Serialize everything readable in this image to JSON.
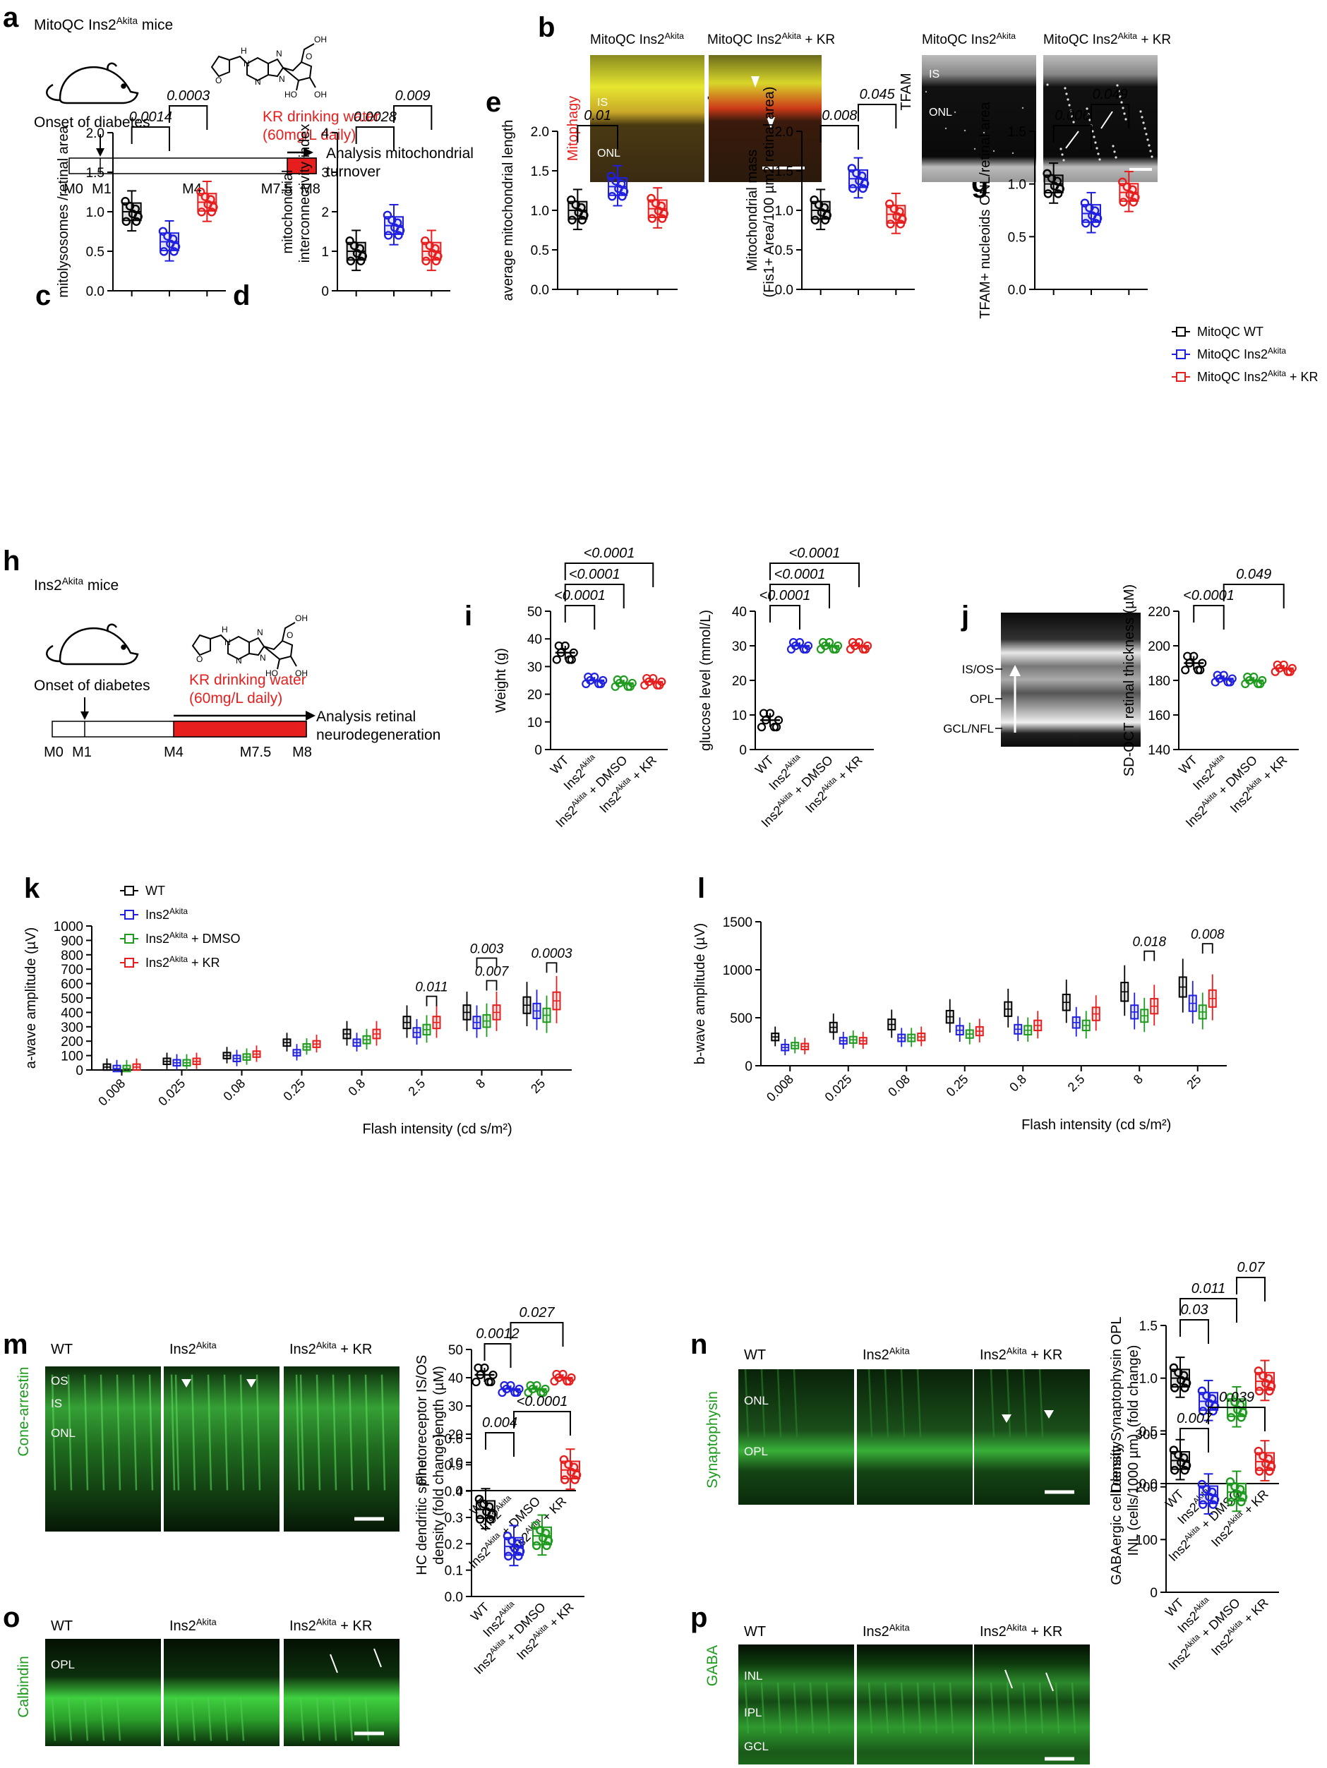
{
  "panels": {
    "a": {
      "letter": "a",
      "title_pre": "MitoQC Ins2",
      "title_sup": "Akita",
      "title_post": " mice",
      "onset": "Onset of diabetes",
      "kr_line1": "KR drinking water",
      "kr_line2": "(60mg/L daily)",
      "analysis_line1": "Analysis mitochondrial",
      "analysis_line2": "turnover",
      "timeline": [
        "M0",
        "M1",
        "M4",
        "M7.5",
        "M8"
      ]
    },
    "b": {
      "letter": "b",
      "img1_pre": "MitoQC Ins2",
      "img1_sup": "Akita",
      "img2_pre": "MitoQC Ins2",
      "img2_sup": "Akita",
      "img2_post": " + KR",
      "img3_pre": "MitoQC Ins2",
      "img3_sup": "Akita",
      "img4_pre": "MitoQC Ins2",
      "img4_sup": "Akita",
      "img4_post": " + KR",
      "side_left": "Mitophagy",
      "side_right": "TFAM",
      "label_is": "IS",
      "label_onl": "ONL",
      "label_is2": "IS",
      "label_onl2": "ONL"
    },
    "h": {
      "letter": "h",
      "title_pre": "Ins2",
      "title_sup": "Akita",
      "title_post": " mice",
      "onset": "Onset of diabetes",
      "kr_line1": "KR drinking water",
      "kr_line2": "(60mg/L daily)",
      "analysis_line1": "Analysis retinal",
      "analysis_line2": "neurodegeneration",
      "timeline": [
        "M0",
        "M1",
        "M4",
        "M7.5",
        "M8"
      ]
    },
    "j_image": {
      "labels": [
        "IS/OS",
        "OPL",
        "GCL/NFL"
      ]
    },
    "m": {
      "letter": "m",
      "stain": "Cone-arrestin",
      "cols": [
        "WT",
        "Ins2",
        "Ins2"
      ],
      "col_sup": "Akita",
      "col3_post": " + KR",
      "layers": [
        "OS",
        "IS",
        "ONL"
      ]
    },
    "n": {
      "letter": "n",
      "stain": "Synaptophysin",
      "cols": [
        "WT",
        "Ins2",
        "Ins2"
      ],
      "col_sup": "Akita",
      "col3_post": " + KR",
      "layers": [
        "ONL",
        "OPL"
      ]
    },
    "o": {
      "letter": "o",
      "stain": "Calbindin",
      "cols": [
        "WT",
        "Ins2",
        "Ins2"
      ],
      "col_sup": "Akita",
      "col3_post": " + KR",
      "layers": [
        "OPL"
      ]
    },
    "p": {
      "letter": "p",
      "stain": "GABA",
      "cols": [
        "WT",
        "Ins2",
        "Ins2"
      ],
      "col_sup": "Akita",
      "col3_post": " + KR",
      "layers": [
        "INL",
        "IPL",
        "GCL"
      ]
    }
  },
  "legend_g": {
    "items": [
      {
        "pre": "MitoQC WT",
        "sup": "",
        "post": "",
        "color": "#000000"
      },
      {
        "pre": "MitoQC Ins2",
        "sup": "Akita",
        "post": "",
        "color": "#1f1fe0"
      },
      {
        "pre": "MitoQC Ins2",
        "sup": "Akita",
        "post": " + KR",
        "color": "#e61e1e"
      }
    ]
  },
  "legend_k": {
    "items": [
      {
        "pre": "WT",
        "sup": "",
        "post": "",
        "color": "#000000"
      },
      {
        "pre": "Ins2",
        "sup": "Akita",
        "post": "",
        "color": "#1f1fe0"
      },
      {
        "pre": "Ins2",
        "sup": "Akita",
        "post": " + DMSO",
        "color": "#1e9a1e"
      },
      {
        "pre": "Ins2",
        "sup": "Akita",
        "post": " + KR",
        "color": "#e61e1e"
      }
    ]
  },
  "colors": {
    "wt": "#000000",
    "akita": "#1f1fe0",
    "dmso": "#1e9a1e",
    "kr": "#e61e1e"
  },
  "chart_data": [
    {
      "id": "c",
      "type": "box",
      "ylabel": "mitolysosomes /retinal area",
      "ylim": [
        0,
        2.0
      ],
      "yticks": [
        0.0,
        0.5,
        1.0,
        1.5,
        2.0
      ],
      "groups": [
        {
          "key": "wt",
          "median": 1.0
        },
        {
          "key": "akita",
          "median": 0.62
        },
        {
          "key": "kr",
          "median": 1.12
        }
      ],
      "pvalues": [
        {
          "a": 0,
          "b": 1,
          "text": "0.0014"
        },
        {
          "a": 1,
          "b": 2,
          "text": "0.0003"
        }
      ]
    },
    {
      "id": "d",
      "type": "box",
      "ylabel": "mitochondrial interconnectivity index",
      "ylim": [
        0,
        4
      ],
      "yticks": [
        0,
        1,
        2,
        3,
        4
      ],
      "groups": [
        {
          "key": "wt",
          "median": 1.0
        },
        {
          "key": "akita",
          "median": 1.65
        },
        {
          "key": "kr",
          "median": 1.0
        }
      ],
      "pvalues": [
        {
          "a": 0,
          "b": 1,
          "text": "0.0028"
        },
        {
          "a": 1,
          "b": 2,
          "text": "0.009"
        }
      ]
    },
    {
      "id": "e",
      "type": "box",
      "ylabel": "average mitochondrial length",
      "ylim": [
        0,
        2.0
      ],
      "yticks": [
        0.0,
        0.5,
        1.0,
        1.5,
        2.0
      ],
      "groups": [
        {
          "key": "wt",
          "median": 1.0
        },
        {
          "key": "akita",
          "median": 1.3
        },
        {
          "key": "kr",
          "median": 1.02
        }
      ],
      "pvalues": [
        {
          "a": 0,
          "b": 1,
          "text": "0.01"
        }
      ]
    },
    {
      "id": "f",
      "type": "box",
      "ylabel": "Mitochondrial mass (Fis1+ Area/100 µm2 retinal area)",
      "ylim": [
        0,
        2.0
      ],
      "yticks": [
        0.0,
        0.5,
        1.0,
        1.5,
        2.0
      ],
      "groups": [
        {
          "key": "wt",
          "median": 1.0
        },
        {
          "key": "akita",
          "median": 1.4
        },
        {
          "key": "kr",
          "median": 0.95
        }
      ],
      "pvalues": [
        {
          "a": 0,
          "b": 1,
          "text": "0.008"
        },
        {
          "a": 1,
          "b": 2,
          "text": "0.045"
        }
      ]
    },
    {
      "id": "g",
      "type": "box",
      "ylabel": "TFAM+ nucleoids ONL/retinal area",
      "ylim": [
        0,
        1.5
      ],
      "yticks": [
        0.0,
        0.5,
        1.0,
        1.5
      ],
      "groups": [
        {
          "key": "wt",
          "median": 1.0
        },
        {
          "key": "akita",
          "median": 0.72
        },
        {
          "key": "kr",
          "median": 0.92
        }
      ],
      "pvalues": [
        {
          "a": 0,
          "b": 1,
          "text": "0.006"
        },
        {
          "a": 1,
          "b": 2,
          "text": "0.049"
        }
      ]
    },
    {
      "id": "i1",
      "type": "scatter",
      "ylabel": "Weight (g)",
      "ylim": [
        0,
        50
      ],
      "yticks": [
        0,
        10,
        20,
        30,
        40,
        50
      ],
      "groups": [
        {
          "key": "wt",
          "mean": 35
        },
        {
          "key": "akita",
          "mean": 25
        },
        {
          "key": "dmso",
          "mean": 24
        },
        {
          "key": "kr",
          "mean": 24.5
        }
      ],
      "pvalues": [
        {
          "a": 0,
          "b": 1,
          "text": "<0.0001"
        },
        {
          "a": 0,
          "b": 2,
          "text": "<0.0001"
        },
        {
          "a": 0,
          "b": 3,
          "text": "<0.0001"
        }
      ]
    },
    {
      "id": "i2",
      "type": "scatter",
      "ylabel": "glucose level (mmol/L)",
      "ylim": [
        0,
        40
      ],
      "yticks": [
        0,
        10,
        20,
        30,
        40
      ],
      "groups": [
        {
          "key": "wt",
          "mean": 8.5
        },
        {
          "key": "akita",
          "mean": 30
        },
        {
          "key": "dmso",
          "mean": 30
        },
        {
          "key": "kr",
          "mean": 30
        }
      ],
      "pvalues": [
        {
          "a": 0,
          "b": 1,
          "text": "<0.0001"
        },
        {
          "a": 0,
          "b": 2,
          "text": "<0.0001"
        },
        {
          "a": 0,
          "b": 3,
          "text": "<0.0001"
        }
      ]
    },
    {
      "id": "j",
      "type": "scatter",
      "ylabel": "SD-OCT retinal thickness (µM)",
      "ylim": [
        140,
        220
      ],
      "yticks": [
        140,
        160,
        180,
        200,
        220
      ],
      "groups": [
        {
          "key": "wt",
          "mean": 190
        },
        {
          "key": "akita",
          "mean": 181
        },
        {
          "key": "dmso",
          "mean": 180
        },
        {
          "key": "kr",
          "mean": 187
        }
      ],
      "pvalues": [
        {
          "a": 0,
          "b": 1,
          "text": "<0.0001"
        },
        {
          "a": 1,
          "b": 3,
          "text": "0.049"
        }
      ]
    },
    {
      "id": "k",
      "type": "box-multi",
      "xlabel": "Flash intensity (cd s/m²)",
      "ylabel": "a-wave amplitude (µV)",
      "ylim": [
        0,
        1000
      ],
      "yticks": [
        0,
        100,
        200,
        300,
        400,
        500,
        600,
        700,
        800,
        900,
        1000
      ],
      "categories": [
        "0.008",
        "0.025",
        "0.08",
        "0.25",
        "0.8",
        "2.5",
        "8",
        "25"
      ],
      "series": [
        {
          "key": "wt",
          "values": [
            20,
            60,
            100,
            190,
            250,
            330,
            400,
            450
          ]
        },
        {
          "key": "akita",
          "values": [
            10,
            50,
            80,
            120,
            190,
            260,
            330,
            410
          ]
        },
        {
          "key": "dmso",
          "values": [
            10,
            50,
            90,
            160,
            210,
            280,
            340,
            380
          ]
        },
        {
          "key": "kr",
          "values": [
            20,
            60,
            110,
            180,
            250,
            330,
            400,
            480
          ]
        }
      ],
      "pvalues": [
        {
          "cat": 5,
          "text": "0.011"
        },
        {
          "cat": 6,
          "text": "0.007"
        },
        {
          "cat": 6,
          "text": "0.003"
        },
        {
          "cat": 7,
          "text": "0.0003"
        }
      ]
    },
    {
      "id": "l",
      "type": "box-multi",
      "xlabel": "Flash intensity (cd s/m²)",
      "ylabel": "b-wave amplitude (µV)",
      "ylim": [
        0,
        1500
      ],
      "yticks": [
        0,
        500,
        1000,
        1500
      ],
      "categories": [
        "0.008",
        "0.025",
        "0.08",
        "0.25",
        "0.8",
        "2.5",
        "8",
        "25"
      ],
      "series": [
        {
          "key": "wt",
          "values": [
            300,
            400,
            430,
            510,
            590,
            660,
            770,
            820
          ]
        },
        {
          "key": "akita",
          "values": [
            190,
            260,
            290,
            370,
            380,
            450,
            560,
            650
          ]
        },
        {
          "key": "dmso",
          "values": [
            210,
            270,
            290,
            330,
            370,
            420,
            520,
            560
          ]
        },
        {
          "key": "kr",
          "values": [
            200,
            260,
            300,
            360,
            420,
            540,
            620,
            700
          ]
        }
      ],
      "pvalues": [
        {
          "cat": 6,
          "text": "0.018"
        },
        {
          "cat": 7,
          "text": "0.008"
        }
      ]
    },
    {
      "id": "m",
      "type": "scatter",
      "ylabel": "Photoreceptor IS/OS length (µM)",
      "ylim": [
        0,
        50
      ],
      "yticks": [
        0,
        10,
        20,
        30,
        40,
        50
      ],
      "groups": [
        {
          "key": "wt",
          "mean": 41
        },
        {
          "key": "akita",
          "mean": 36
        },
        {
          "key": "dmso",
          "mean": 36
        },
        {
          "key": "kr",
          "mean": 40
        }
      ],
      "pvalues": [
        {
          "a": 0,
          "b": 1,
          "text": "0.0012"
        },
        {
          "a": 1,
          "b": 3,
          "text": "0.027"
        }
      ]
    },
    {
      "id": "n",
      "type": "box",
      "ylabel": "Density Synaptophysin OPL (fold change)",
      "ylim": [
        0,
        1.5
      ],
      "yticks": [
        0.0,
        0.5,
        1.0,
        1.5
      ],
      "groups": [
        {
          "key": "wt",
          "median": 1.0
        },
        {
          "key": "akita",
          "median": 0.78
        },
        {
          "key": "dmso",
          "median": 0.72
        },
        {
          "key": "kr",
          "median": 0.97
        }
      ],
      "pvalues": [
        {
          "a": 0,
          "b": 1,
          "text": "0.03"
        },
        {
          "a": 0,
          "b": 2,
          "text": "0.011"
        },
        {
          "a": 2,
          "b": 3,
          "text": "0.07"
        }
      ]
    },
    {
      "id": "o",
      "type": "box",
      "ylabel": "HC dendritic spine density (fold change)",
      "ylim": [
        0,
        0.6
      ],
      "yticks": [
        0.0,
        0.1,
        0.2,
        0.3,
        0.4,
        0.5,
        0.6
      ],
      "groups": [
        {
          "key": "wt",
          "median": 0.33
        },
        {
          "key": "akita",
          "median": 0.19
        },
        {
          "key": "dmso",
          "median": 0.23
        },
        {
          "key": "kr",
          "median": 0.48
        }
      ],
      "pvalues": [
        {
          "a": 0,
          "b": 1,
          "text": "0.004"
        },
        {
          "a": 1,
          "b": 3,
          "text": "<0.0001"
        }
      ]
    },
    {
      "id": "p",
      "type": "box",
      "ylabel": "GABAergic cell density INL (cells/1000 µm)",
      "ylim": [
        0,
        300
      ],
      "yticks": [
        0,
        100,
        200,
        300
      ],
      "groups": [
        {
          "key": "wt",
          "median": 250
        },
        {
          "key": "akita",
          "median": 185
        },
        {
          "key": "dmso",
          "median": 190
        },
        {
          "key": "kr",
          "median": 248
        }
      ],
      "pvalues": [
        {
          "a": 0,
          "b": 1,
          "text": "0.007"
        },
        {
          "a": 1,
          "b": 3,
          "text": "0.039"
        }
      ]
    }
  ],
  "xlabels": {
    "three": [
      {
        "pre": "",
        "sup": "",
        "post": ""
      },
      {
        "pre": "",
        "sup": "",
        "post": ""
      },
      {
        "pre": "",
        "sup": "",
        "post": ""
      }
    ],
    "four": [
      {
        "pre": "WT",
        "sup": "",
        "post": ""
      },
      {
        "pre": "Ins2",
        "sup": "Akita",
        "post": ""
      },
      {
        "pre": "Ins2",
        "sup": "Akita",
        "post": " + DMSO"
      },
      {
        "pre": "Ins2",
        "sup": "Akita",
        "post": " + KR"
      }
    ]
  }
}
